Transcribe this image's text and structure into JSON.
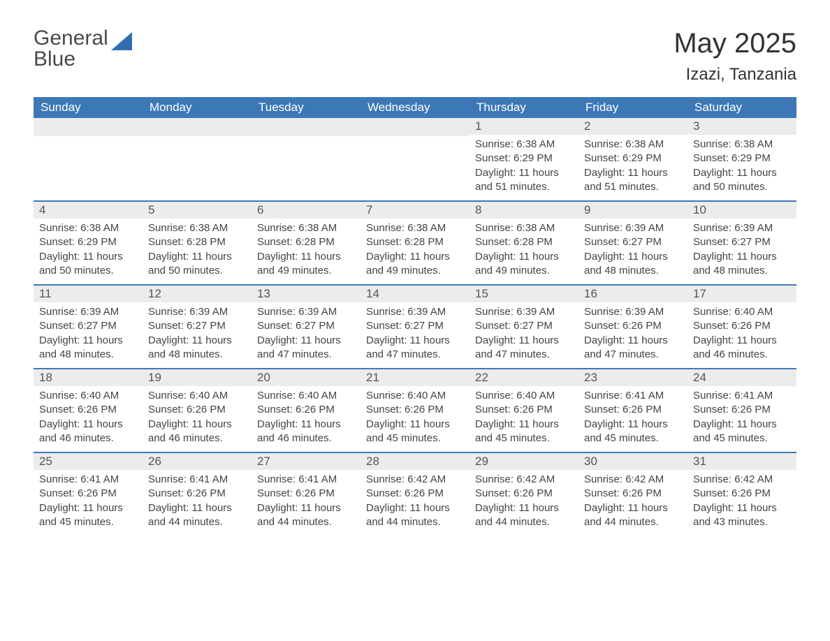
{
  "logo": {
    "word1": "General",
    "word2": "Blue",
    "icon_color": "#2f6fb0"
  },
  "title": "May 2025",
  "location": "Izazi, Tanzania",
  "colors": {
    "header_bg": "#3d78b6",
    "header_text": "#ffffff",
    "daynum_bg": "#ececec",
    "row_border": "#3d78b6",
    "body_text": "#444444"
  },
  "weekdays": [
    "Sunday",
    "Monday",
    "Tuesday",
    "Wednesday",
    "Thursday",
    "Friday",
    "Saturday"
  ],
  "weeks": [
    [
      null,
      null,
      null,
      null,
      {
        "n": "1",
        "sr": "6:38 AM",
        "ss": "6:29 PM",
        "dh": "11",
        "dm": "51"
      },
      {
        "n": "2",
        "sr": "6:38 AM",
        "ss": "6:29 PM",
        "dh": "11",
        "dm": "51"
      },
      {
        "n": "3",
        "sr": "6:38 AM",
        "ss": "6:29 PM",
        "dh": "11",
        "dm": "50"
      }
    ],
    [
      {
        "n": "4",
        "sr": "6:38 AM",
        "ss": "6:29 PM",
        "dh": "11",
        "dm": "50"
      },
      {
        "n": "5",
        "sr": "6:38 AM",
        "ss": "6:28 PM",
        "dh": "11",
        "dm": "50"
      },
      {
        "n": "6",
        "sr": "6:38 AM",
        "ss": "6:28 PM",
        "dh": "11",
        "dm": "49"
      },
      {
        "n": "7",
        "sr": "6:38 AM",
        "ss": "6:28 PM",
        "dh": "11",
        "dm": "49"
      },
      {
        "n": "8",
        "sr": "6:38 AM",
        "ss": "6:28 PM",
        "dh": "11",
        "dm": "49"
      },
      {
        "n": "9",
        "sr": "6:39 AM",
        "ss": "6:27 PM",
        "dh": "11",
        "dm": "48"
      },
      {
        "n": "10",
        "sr": "6:39 AM",
        "ss": "6:27 PM",
        "dh": "11",
        "dm": "48"
      }
    ],
    [
      {
        "n": "11",
        "sr": "6:39 AM",
        "ss": "6:27 PM",
        "dh": "11",
        "dm": "48"
      },
      {
        "n": "12",
        "sr": "6:39 AM",
        "ss": "6:27 PM",
        "dh": "11",
        "dm": "48"
      },
      {
        "n": "13",
        "sr": "6:39 AM",
        "ss": "6:27 PM",
        "dh": "11",
        "dm": "47"
      },
      {
        "n": "14",
        "sr": "6:39 AM",
        "ss": "6:27 PM",
        "dh": "11",
        "dm": "47"
      },
      {
        "n": "15",
        "sr": "6:39 AM",
        "ss": "6:27 PM",
        "dh": "11",
        "dm": "47"
      },
      {
        "n": "16",
        "sr": "6:39 AM",
        "ss": "6:26 PM",
        "dh": "11",
        "dm": "47"
      },
      {
        "n": "17",
        "sr": "6:40 AM",
        "ss": "6:26 PM",
        "dh": "11",
        "dm": "46"
      }
    ],
    [
      {
        "n": "18",
        "sr": "6:40 AM",
        "ss": "6:26 PM",
        "dh": "11",
        "dm": "46"
      },
      {
        "n": "19",
        "sr": "6:40 AM",
        "ss": "6:26 PM",
        "dh": "11",
        "dm": "46"
      },
      {
        "n": "20",
        "sr": "6:40 AM",
        "ss": "6:26 PM",
        "dh": "11",
        "dm": "46"
      },
      {
        "n": "21",
        "sr": "6:40 AM",
        "ss": "6:26 PM",
        "dh": "11",
        "dm": "45"
      },
      {
        "n": "22",
        "sr": "6:40 AM",
        "ss": "6:26 PM",
        "dh": "11",
        "dm": "45"
      },
      {
        "n": "23",
        "sr": "6:41 AM",
        "ss": "6:26 PM",
        "dh": "11",
        "dm": "45"
      },
      {
        "n": "24",
        "sr": "6:41 AM",
        "ss": "6:26 PM",
        "dh": "11",
        "dm": "45"
      }
    ],
    [
      {
        "n": "25",
        "sr": "6:41 AM",
        "ss": "6:26 PM",
        "dh": "11",
        "dm": "45"
      },
      {
        "n": "26",
        "sr": "6:41 AM",
        "ss": "6:26 PM",
        "dh": "11",
        "dm": "44"
      },
      {
        "n": "27",
        "sr": "6:41 AM",
        "ss": "6:26 PM",
        "dh": "11",
        "dm": "44"
      },
      {
        "n": "28",
        "sr": "6:42 AM",
        "ss": "6:26 PM",
        "dh": "11",
        "dm": "44"
      },
      {
        "n": "29",
        "sr": "6:42 AM",
        "ss": "6:26 PM",
        "dh": "11",
        "dm": "44"
      },
      {
        "n": "30",
        "sr": "6:42 AM",
        "ss": "6:26 PM",
        "dh": "11",
        "dm": "44"
      },
      {
        "n": "31",
        "sr": "6:42 AM",
        "ss": "6:26 PM",
        "dh": "11",
        "dm": "43"
      }
    ]
  ],
  "labels": {
    "sunrise": "Sunrise:",
    "sunset": "Sunset:",
    "daylight": "Daylight:",
    "hours": "hours",
    "and": "and",
    "minutes": "minutes."
  }
}
